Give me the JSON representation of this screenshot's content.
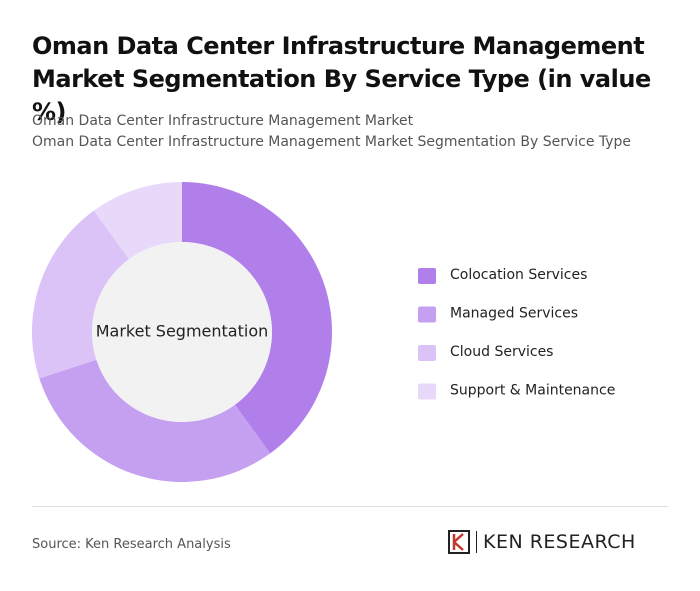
{
  "chart_data": {
    "type": "pie",
    "title": "Oman Data Center Infrastructure Management Market Segmentation By Service Type (in value %)",
    "subtitle": [
      "Oman Data Center Infrastructure Management Market",
      "Oman Data Center Infrastructure Management Market Segmentation By Service Type"
    ],
    "center_label": "Market Segmentation",
    "categories": [
      "Colocation Services",
      "Managed Services",
      "Cloud Services",
      "Support & Maintenance"
    ],
    "values": [
      40,
      30,
      20,
      10
    ],
    "colors": [
      "#b07fea",
      "#c59ff0",
      "#dcc3f7",
      "#e8d8f9"
    ],
    "source": "Source: Ken Research Analysis",
    "brand": "KEN RESEARCH"
  }
}
